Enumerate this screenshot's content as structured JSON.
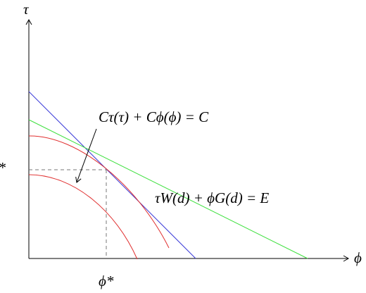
{
  "axes": {
    "y_label": "τ",
    "x_label": "ϕ",
    "y_star": "τ*",
    "x_star": "ϕ*"
  },
  "equations": {
    "cost": "Cτ(τ) + Cϕ(ϕ) = C",
    "budget": "τW(d) + ϕG(d) = E"
  }
}
